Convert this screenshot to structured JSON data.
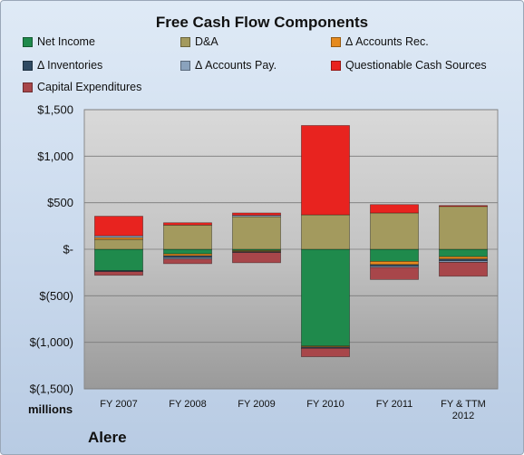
{
  "chart_data": {
    "type": "bar",
    "stacked": true,
    "title": "Free Cash Flow Components",
    "categories": [
      "FY 2007",
      "FY 2008",
      "FY 2009",
      "FY 2010",
      "FY 2011",
      "FY & TTM\n2012"
    ],
    "ylim": [
      -1500,
      1500
    ],
    "yticks": [
      1500,
      1000,
      500,
      0,
      -500,
      -1000,
      -1500
    ],
    "ytick_labels": [
      "$1,500",
      "$1,000",
      "$500",
      "$-",
      "$(500)",
      "$(1,000)",
      "$(1,500)"
    ],
    "units_label": "millions",
    "grid": true,
    "legend_position": "top",
    "series": [
      {
        "name": "Net Income",
        "color": "#1f8a4c",
        "values": [
          -230,
          -50,
          -15,
          -1040,
          -130,
          -80
        ]
      },
      {
        "name": "D&A",
        "color": "#a39a5e",
        "values": [
          105,
          260,
          350,
          370,
          390,
          460
        ]
      },
      {
        "name": "Δ Accounts Rec.",
        "color": "#e58a1e",
        "values": [
          20,
          -20,
          -10,
          -10,
          -35,
          -25
        ]
      },
      {
        "name": "Δ Inventories",
        "color": "#2f4a63",
        "values": [
          -10,
          -20,
          -10,
          -10,
          -15,
          -20
        ]
      },
      {
        "name": "Δ Accounts Pay.",
        "color": "#8aa2bd",
        "values": [
          20,
          -15,
          15,
          -5,
          -15,
          -15
        ]
      },
      {
        "name": "Questionable Cash Sources",
        "color": "#e8231f",
        "values": [
          210,
          25,
          25,
          960,
          90,
          10
        ]
      },
      {
        "name": "Capital Expenditures",
        "color": "#a8464a",
        "values": [
          -40,
          -50,
          -110,
          -90,
          -130,
          -150
        ]
      }
    ]
  },
  "footer": {
    "units": "millions",
    "company": "Alere"
  }
}
